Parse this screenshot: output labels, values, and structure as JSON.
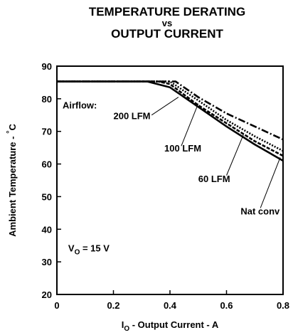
{
  "chart_data": {
    "type": "line",
    "title_lines": [
      "TEMPERATURE DERATING",
      "vs",
      "OUTPUT CURRENT"
    ],
    "xlabel_main": "I",
    "xlabel_sub": "O",
    "xlabel_rest": " - Output Current - A",
    "ylabel_main": "Ambient Temperature - ",
    "ylabel_deg": "°",
    "ylabel_unit": "C",
    "xlim": [
      0,
      0.8
    ],
    "ylim": [
      20,
      90
    ],
    "xticks": [
      0,
      0.2,
      0.4,
      0.6,
      0.8
    ],
    "xtick_labels": [
      "0",
      "0.2",
      "0.4",
      "0.6",
      "0.8"
    ],
    "yticks": [
      20,
      30,
      40,
      50,
      60,
      70,
      80,
      90
    ],
    "ytick_labels": [
      "20",
      "30",
      "40",
      "50",
      "60",
      "70",
      "80",
      "90"
    ],
    "grid": false,
    "annotation_airflow": "Airflow:",
    "annotation_vo_main": "V",
    "annotation_vo_sub": "O",
    "annotation_vo_rest": " = 15 V",
    "series": [
      {
        "name": "200 LFM",
        "dash": "10,3,2,3",
        "points": [
          [
            0,
            85.3
          ],
          [
            0.42,
            85.3
          ],
          [
            0.5,
            80.5
          ],
          [
            0.6,
            75.5
          ],
          [
            0.7,
            71.5
          ],
          [
            0.8,
            67.5
          ]
        ]
      },
      {
        "name": "100 LFM",
        "dash": "2,2",
        "points": [
          [
            0,
            85.3
          ],
          [
            0.4,
            85.3
          ],
          [
            0.5,
            79.5
          ],
          [
            0.6,
            73.5
          ],
          [
            0.7,
            68.5
          ],
          [
            0.8,
            64
          ]
        ]
      },
      {
        "name": "60 LFM",
        "dash": "5,2",
        "points": [
          [
            0,
            85.3
          ],
          [
            0.36,
            85.3
          ],
          [
            0.4,
            84.5
          ],
          [
            0.5,
            78
          ],
          [
            0.6,
            72.5
          ],
          [
            0.7,
            67
          ],
          [
            0.8,
            62.5
          ]
        ]
      },
      {
        "name": "Nat conv",
        "dash": "",
        "points": [
          [
            0,
            85.3
          ],
          [
            0.32,
            85.3
          ],
          [
            0.4,
            83.5
          ],
          [
            0.5,
            77.5
          ],
          [
            0.6,
            71.5
          ],
          [
            0.7,
            66
          ],
          [
            0.8,
            61
          ]
        ]
      }
    ],
    "callouts": [
      {
        "series": "200 LFM",
        "label_x": 0.2,
        "label_y": 73.8,
        "from": [
          0.335,
          75
        ],
        "to": [
          0.43,
          80.5
        ]
      },
      {
        "series": "100 LFM",
        "label_x": 0.38,
        "label_y": 63.8,
        "from": [
          0.44,
          65.5
        ],
        "to": [
          0.5,
          78.5
        ]
      },
      {
        "series": "60 LFM",
        "label_x": 0.5,
        "label_y": 54.5,
        "from": [
          0.6,
          56.5
        ],
        "to": [
          0.66,
          69
        ]
      },
      {
        "series": "Nat conv",
        "label_x": 0.65,
        "label_y": 44.5,
        "from": [
          0.72,
          46.5
        ],
        "to": [
          0.79,
          62
        ]
      }
    ]
  }
}
